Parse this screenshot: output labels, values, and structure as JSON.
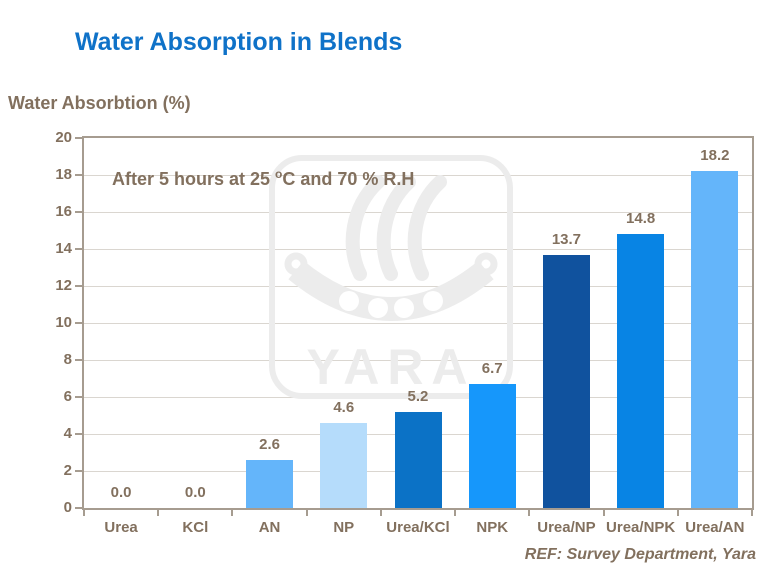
{
  "slide": {
    "title": "Water Absorption in Blends",
    "y_axis_title": "Water Absorbtion (%)",
    "annotation": {
      "pre": "After 5 hours at 25 ",
      "sup": "o",
      "post": "C and 70 % R.H"
    },
    "footer": "REF: Survey Department, Yara",
    "watermark_text": "YARA"
  },
  "colors": {
    "title_blue": "#0f72c8",
    "label_brown": "#82705e",
    "axis": "#a69c90",
    "gridline": "#dad6d0",
    "watermark_gray": "#ececec"
  },
  "chart_data": {
    "type": "bar",
    "title": "Water Absorption in Blends",
    "xlabel": "",
    "ylabel": "Water Absorbtion (%)",
    "categories": [
      "Urea",
      "KCl",
      "AN",
      "NP",
      "Urea/KCl",
      "NPK",
      "Urea/NP",
      "Urea/NPK",
      "Urea/AN"
    ],
    "values": [
      0.0,
      0.0,
      2.6,
      4.6,
      5.2,
      6.7,
      13.7,
      14.8,
      18.2
    ],
    "value_labels": [
      "0.0",
      "0.0",
      "2.6",
      "4.6",
      "5.2",
      "6.7",
      "13.7",
      "14.8",
      "18.2"
    ],
    "bar_colors": [
      null,
      null,
      "#64b5fa",
      "#b5dcfb",
      "#0b72c6",
      "#1697fb",
      "#10529e",
      "#0884e4",
      "#64b5fa"
    ],
    "ylim": [
      0,
      20
    ],
    "ytick_step": 2,
    "grid": true,
    "legend_position": "none",
    "annotation": "After 5 hours at 25 oC and 70 % R.H"
  }
}
